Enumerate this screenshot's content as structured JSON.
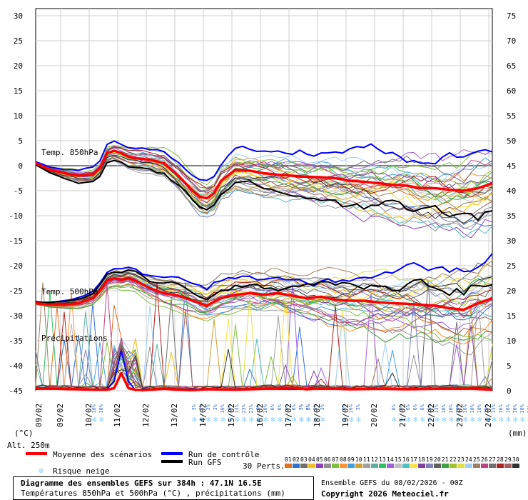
{
  "chart_data": {
    "type": "line",
    "title": "Diagramme des ensembles GEFS sur 384h : 47.1N 16.5E",
    "subtitle": "Températures 850hPa et 500hPa (°C) , précipitations (mm)",
    "run_label": "Ensemble GEFS du 08/02/2026 - 00Z",
    "copyright": "Copyright 2026 Meteociel.fr",
    "y_left_ticks": [
      30,
      25,
      20,
      15,
      10,
      5,
      0,
      -5,
      -10,
      -15,
      -20,
      -25,
      -30,
      -35,
      -40,
      -45
    ],
    "y_right_ticks": [
      75,
      70,
      65,
      60,
      55,
      50,
      45,
      40,
      35,
      30,
      25,
      20,
      15,
      10,
      5,
      0
    ],
    "ylim_left": [
      -45,
      30
    ],
    "ylim_right": [
      0,
      75
    ],
    "ylabel_left": "(°C)",
    "ylabel_right": "(mm)",
    "x_ticks": [
      "09/02",
      "09/02",
      "10/02",
      "11/02",
      "12/02",
      "13/02",
      "14/02",
      "15/02",
      "16/02",
      "17/02",
      "18/02",
      "19/02",
      "20/02",
      "21/02",
      "22/02",
      "23/02",
      "24/02"
    ],
    "x_range_hours": [
      0,
      384
    ],
    "annotations": {
      "t850": "Temp. 850hPa",
      "t500": "Temp. 500hPa",
      "precip": "Précipitations",
      "alt": "Alt. 250m"
    },
    "legend": {
      "mean": "Moyenne des scénarios",
      "control": "Run de contrôle",
      "gfs": "Run GFS",
      "snow": "Risque neige",
      "perts": "30 Perts.",
      "pert_numbers": [
        "01",
        "02",
        "03",
        "04",
        "05",
        "06",
        "07",
        "08",
        "09",
        "10",
        "11",
        "12",
        "13",
        "14",
        "15",
        "16",
        "17",
        "18",
        "19",
        "20",
        "21",
        "22",
        "23",
        "24",
        "25",
        "26",
        "27",
        "28",
        "29",
        "30"
      ]
    },
    "colors": {
      "mean": "#ff0000",
      "control": "#0000ff",
      "gfs": "#000000",
      "snow": "#8fd0ff",
      "pert_colors": [
        "#e07020",
        "#3070d0",
        "#707070",
        "#f0c020",
        "#9040c0",
        "#909090",
        "#80c040",
        "#ff9030",
        "#40a0e0",
        "#d0a030",
        "#a0a0a0",
        "#60b0a0",
        "#30c060",
        "#a060e0",
        "#c0c0c0",
        "#50c0c0",
        "#ffe040",
        "#8040a0",
        "#8080c0",
        "#606060",
        "#40a040",
        "#a0c030",
        "#e0e040",
        "#a0d0ff",
        "#a08060",
        "#c04080",
        "#707070",
        "#b02020",
        "#a06060",
        "#303030"
      ]
    },
    "series_mean_t850": {
      "x_hours": [
        0,
        12,
        24,
        36,
        48,
        54,
        60,
        66,
        72,
        78,
        84,
        96,
        108,
        120,
        132,
        138,
        144,
        150,
        156,
        168,
        180,
        192,
        204,
        216,
        228,
        240,
        252,
        264,
        276,
        288,
        300,
        312,
        324,
        336,
        348,
        360,
        372,
        384
      ],
      "values": [
        0.5,
        -0.8,
        -1.5,
        -2.0,
        -1.8,
        -0.5,
        2.5,
        3.0,
        2.5,
        1.8,
        1.5,
        1.2,
        0.5,
        -2.0,
        -5.0,
        -6.2,
        -6.5,
        -5.5,
        -3.0,
        -0.8,
        -1.0,
        -1.5,
        -1.8,
        -2.0,
        -2.2,
        -2.3,
        -2.5,
        -3.0,
        -3.2,
        -3.5,
        -3.8,
        -4.0,
        -4.5,
        -4.5,
        -4.8,
        -5.0,
        -4.5,
        -3.5
      ]
    },
    "series_mean_t500": {
      "x_hours": [
        0,
        12,
        24,
        36,
        48,
        54,
        60,
        66,
        72,
        78,
        84,
        96,
        108,
        120,
        132,
        138,
        144,
        150,
        156,
        168,
        180,
        192,
        204,
        216,
        228,
        240,
        252,
        264,
        276,
        288,
        300,
        312,
        324,
        336,
        348,
        360,
        372,
        384
      ],
      "values": [
        -27.5,
        -27.8,
        -27.8,
        -27.5,
        -26.5,
        -25.0,
        -23.0,
        -22.5,
        -22.8,
        -22.5,
        -23.0,
        -24.5,
        -25.5,
        -26.0,
        -27.0,
        -27.5,
        -28.0,
        -27.2,
        -26.5,
        -25.8,
        -25.5,
        -25.8,
        -25.5,
        -26.0,
        -26.5,
        -26.2,
        -26.8,
        -27.0,
        -27.0,
        -27.3,
        -27.5,
        -27.6,
        -27.8,
        -28.0,
        -28.5,
        -28.8,
        -27.5,
        -26.5
      ]
    },
    "precip_mean_mm": {
      "x_hours": [
        0,
        48,
        60,
        66,
        72,
        78,
        84,
        90,
        96,
        108,
        120,
        132,
        144,
        168,
        192,
        216,
        228,
        240,
        264,
        288,
        312,
        336,
        360,
        384
      ],
      "values": [
        0.5,
        0.2,
        0.2,
        0.5,
        3.5,
        0.5,
        0.2,
        0.1,
        0.2,
        0.4,
        0.2,
        0.1,
        0.3,
        0.2,
        0.4,
        0.6,
        0.3,
        0.5,
        0.3,
        0.4,
        0.3,
        0.4,
        0.5,
        0.2
      ]
    },
    "snow_risk": [
      {
        "hour": 48,
        "labels": [
          "10%",
          "10%"
        ]
      },
      {
        "hour": 132,
        "labels": [
          "3%",
          "3%",
          "3%",
          "3%",
          "10%",
          "10%",
          "13%",
          "23%",
          "23%",
          "6%",
          "10%",
          "6%",
          "6%",
          "6%",
          "6%",
          "3%",
          "3%",
          "3%",
          "3%"
        ]
      },
      {
        "hour": 222,
        "labels": [
          "3%",
          "6%"
        ]
      },
      {
        "hour": 258,
        "labels": [
          "6%",
          "10%",
          "3%"
        ]
      },
      {
        "hour": 300,
        "labels": [
          "6%",
          "6%",
          "6%",
          "6%",
          "6%",
          "10%",
          "13%",
          "10%",
          "10%",
          "13%",
          "16%",
          "10%",
          "10%",
          "13%",
          "13%",
          "16%",
          "16%",
          "10%",
          "10%",
          "16%",
          "3%"
        ]
      }
    ]
  }
}
